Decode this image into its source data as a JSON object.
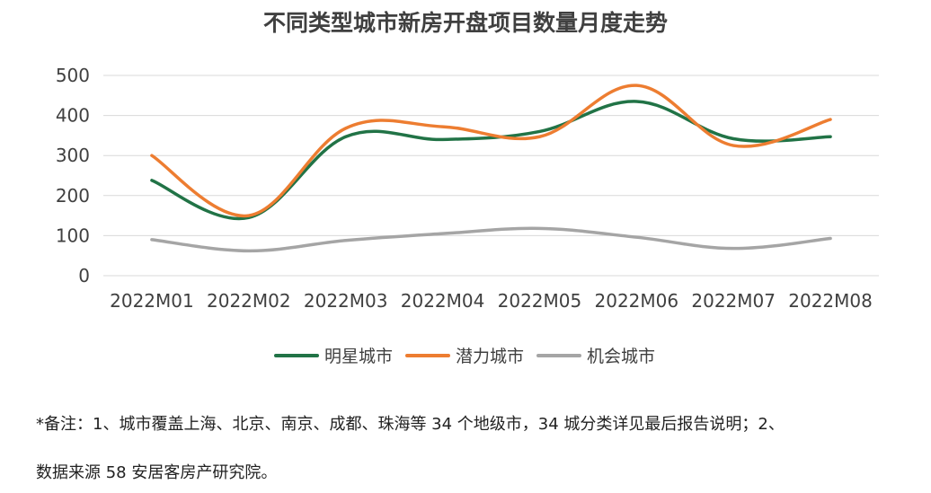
{
  "chart_data": {
    "type": "line",
    "title": "不同类型城市新房开盘项目数量月度走势",
    "categories": [
      "2022M01",
      "2022M02",
      "2022M03",
      "2022M04",
      "2022M05",
      "2022M06",
      "2022M07",
      "2022M08"
    ],
    "series": [
      {
        "name": "明星城市",
        "color": "#217346",
        "values": [
          238,
          145,
          347,
          340,
          360,
          435,
          342,
          347
        ]
      },
      {
        "name": "潜力城市",
        "color": "#ED7D31",
        "values": [
          300,
          150,
          368,
          372,
          347,
          475,
          325,
          390
        ]
      },
      {
        "name": "机会城市",
        "color": "#A5A5A5",
        "values": [
          90,
          62,
          88,
          105,
          118,
          96,
          68,
          93
        ]
      }
    ],
    "yticks": [
      "0",
      "100",
      "200",
      "300",
      "400",
      "500"
    ],
    "ylim": [
      0,
      500
    ],
    "grid": true,
    "legend_position": "bottom"
  },
  "notes": {
    "line1": "*备注：1、城市覆盖上海、北京、南京、成都、珠海等 34 个地级市，34 城分类详见最后报告说明；2、",
    "line2": "数据来源 58 安居客房产研究院。"
  }
}
